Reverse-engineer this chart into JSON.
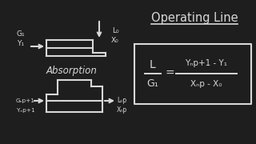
{
  "background_color": "#1e1e1e",
  "text_color": "#d8d8d8",
  "title": "Operating Line",
  "label_absorption": "Absorption",
  "top_left_label1": "G₁",
  "top_left_label2": "Y₁",
  "top_right_label1": "L₀",
  "top_right_label2": "X₀",
  "bot_left_label1": "Gₙp+1",
  "bot_left_label2": "Yₙp+1",
  "bot_right_label1": "Lₙp",
  "bot_right_label2": "Xₙp",
  "eq_lhs_num": "L",
  "eq_lhs_den": "G₁",
  "eq_rhs_num": "Yₙp+1 - Y₁",
  "eq_rhs_den": "Xₙp - X₀",
  "lw": 1.5
}
